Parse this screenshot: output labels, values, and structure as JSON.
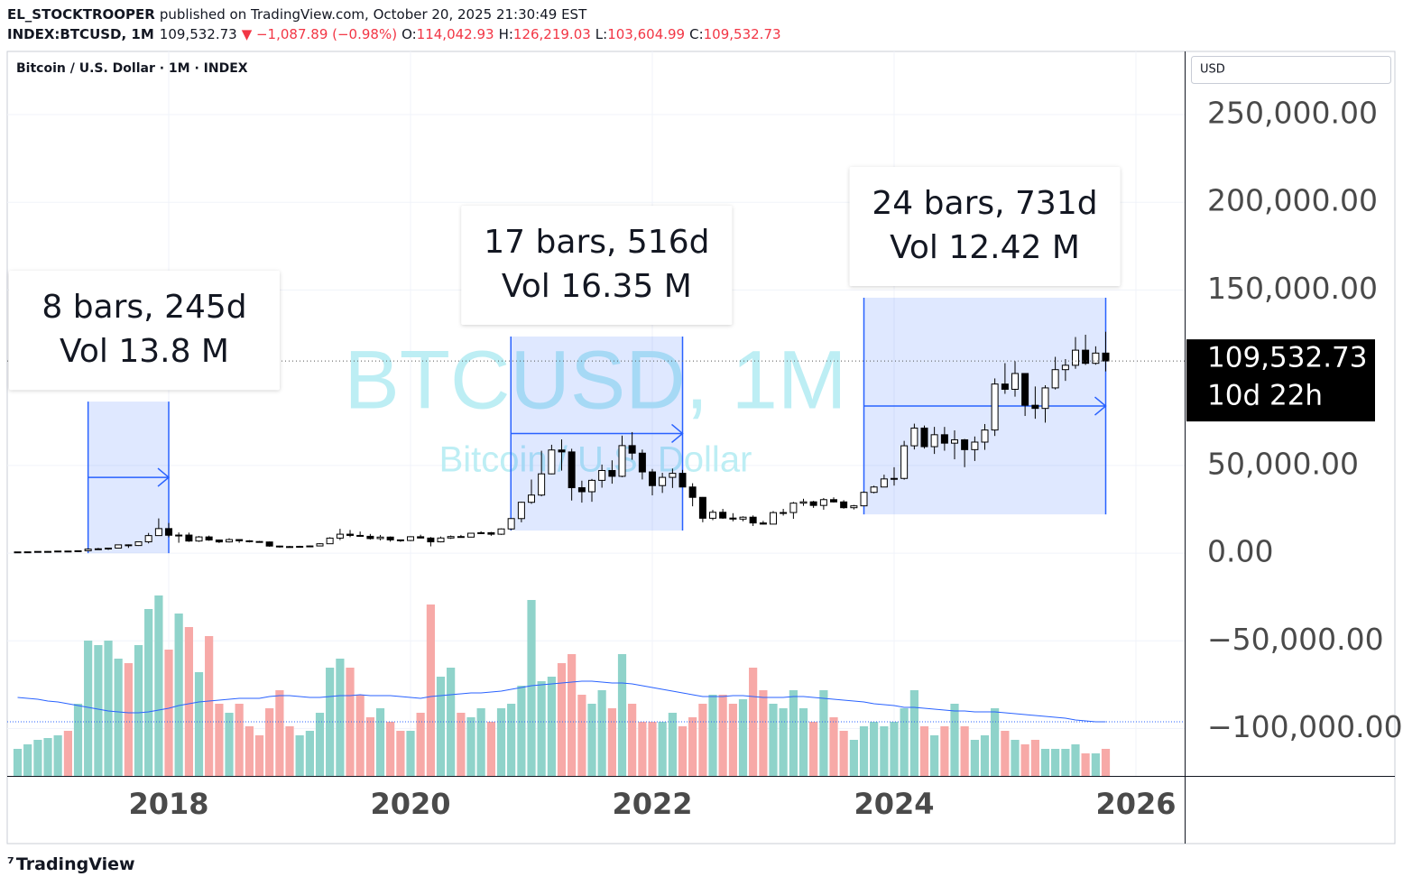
{
  "header": {
    "publisher": "EL_STOCKTROOPER",
    "published": "published on TradingView.com, October 20, 2025 21:30:49 EST",
    "symbol": "INDEX:BTCUSD, 1M",
    "price": "109,532.73",
    "change": "▼ −1,087.89 (−0.98%)",
    "ohlc": [
      {
        "label": "O:",
        "value": "114,042.93"
      },
      {
        "label": "H:",
        "value": "126,219.03"
      },
      {
        "label": "L:",
        "value": "103,604.99"
      },
      {
        "label": "C:",
        "value": "109,532.73"
      }
    ]
  },
  "footer": {
    "brand": "TradingView"
  },
  "chart_data": {
    "type": "candlestick",
    "title": "Bitcoin / U.S. Dollar · 1M · INDEX",
    "currency": "USD",
    "watermark": "BTCUSD, 1M",
    "watermark_subtitle": "Bitcoin / U.S. Dollar",
    "last_price_label": "109,532.73",
    "countdown": "10d 22h",
    "up_color": "#ffffff",
    "down_color": "#000000",
    "volume_up_color": "#8fd3ca",
    "volume_down_color": "#f7a9a7",
    "ma_color": "#2962ff",
    "measure_color": "#2962ff",
    "grid": true,
    "xlim": [
      2016.664,
      2026.403
    ],
    "xticks": [
      2018,
      2020,
      2022,
      2024,
      2026
    ],
    "ylim": [
      -127000,
      286000
    ],
    "yticks": [
      {
        "value": -100000,
        "label": "−100,000.00"
      },
      {
        "value": -50000,
        "label": "−50,000.00"
      },
      {
        "value": 0,
        "label": "0.00"
      },
      {
        "value": 50000,
        "label": "50,000.00"
      },
      {
        "value": 150000,
        "label": "150,000.00"
      },
      {
        "value": 200000,
        "label": "200,000.00"
      },
      {
        "value": 250000,
        "label": "250,000.00"
      }
    ],
    "x": [
      2016.75,
      2016.833,
      2016.917,
      2017,
      2017.083,
      2017.167,
      2017.25,
      2017.333,
      2017.417,
      2017.5,
      2017.583,
      2017.667,
      2017.75,
      2017.833,
      2017.917,
      2018,
      2018.083,
      2018.167,
      2018.25,
      2018.333,
      2018.417,
      2018.5,
      2018.583,
      2018.667,
      2018.75,
      2018.833,
      2018.917,
      2019,
      2019.083,
      2019.167,
      2019.25,
      2019.333,
      2019.417,
      2019.5,
      2019.583,
      2019.667,
      2019.75,
      2019.833,
      2019.917,
      2020,
      2020.083,
      2020.167,
      2020.25,
      2020.333,
      2020.417,
      2020.5,
      2020.583,
      2020.667,
      2020.75,
      2020.833,
      2020.917,
      2021,
      2021.083,
      2021.167,
      2021.25,
      2021.333,
      2021.417,
      2021.5,
      2021.583,
      2021.667,
      2021.75,
      2021.833,
      2021.917,
      2022,
      2022.083,
      2022.167,
      2022.25,
      2022.333,
      2022.417,
      2022.5,
      2022.583,
      2022.667,
      2022.75,
      2022.833,
      2022.917,
      2023,
      2023.083,
      2023.167,
      2023.25,
      2023.333,
      2023.417,
      2023.5,
      2023.583,
      2023.667,
      2023.75,
      2023.833,
      2023.917,
      2024,
      2024.083,
      2024.167,
      2024.25,
      2024.333,
      2024.417,
      2024.5,
      2024.583,
      2024.667,
      2024.75,
      2024.833,
      2024.917,
      2025,
      2025.083,
      2025.167,
      2025.25,
      2025.333,
      2025.417,
      2025.5,
      2025.583,
      2025.667,
      2025.75
    ],
    "open": [
      610,
      700,
      740,
      960,
      970,
      1190,
      1080,
      1350,
      2300,
      2480,
      2870,
      4730,
      4340,
      6450,
      10000,
      14000,
      10200,
      10300,
      6900,
      9240,
      7500,
      6400,
      7730,
      7030,
      6630,
      6370,
      4040,
      3740,
      3460,
      3850,
      4100,
      5350,
      8570,
      10800,
      10100,
      9600,
      8300,
      9150,
      7570,
      7200,
      9350,
      8600,
      6440,
      8630,
      9450,
      9140,
      11350,
      11650,
      10780,
      13800,
      19700,
      28990,
      33100,
      45200,
      58800,
      57700,
      37300,
      35000,
      41500,
      47100,
      43800,
      61300,
      57000,
      46300,
      38500,
      43200,
      45500,
      37700,
      31800,
      19900,
      23300,
      20000,
      19400,
      20500,
      17200,
      16550,
      23100,
      23150,
      28500,
      29250,
      27200,
      30500,
      29200,
      25900,
      26970,
      34650,
      37700,
      42300,
      42600,
      61200,
      71300,
      60700,
      67500,
      62700,
      64600,
      59000,
      63300,
      70200,
      96400,
      93400,
      102400,
      84300,
      82500,
      94200,
      104600,
      107100,
      115700,
      108200,
      114042.93
    ],
    "high": [
      720,
      760,
      980,
      1160,
      1200,
      1350,
      1360,
      2760,
      2980,
      2920,
      4770,
      4980,
      6470,
      11500,
      19800,
      17200,
      11800,
      11700,
      9760,
      9990,
      7780,
      8490,
      7750,
      7410,
      6960,
      6620,
      4230,
      4110,
      4200,
      4290,
      5640,
      9080,
      13880,
      13200,
      12330,
      10940,
      10370,
      9510,
      7760,
      9620,
      10500,
      9190,
      9460,
      10070,
      10380,
      11440,
      12470,
      12070,
      14100,
      19740,
      29300,
      41950,
      58370,
      61790,
      64850,
      59500,
      41300,
      42300,
      50500,
      52920,
      66990,
      69000,
      59040,
      47990,
      45800,
      48190,
      47440,
      39850,
      31980,
      24670,
      25210,
      22790,
      20990,
      21480,
      18390,
      23950,
      25250,
      29190,
      31000,
      29820,
      31430,
      31800,
      30190,
      27480,
      35200,
      38420,
      44730,
      48970,
      64000,
      73800,
      72750,
      71980,
      71950,
      70000,
      65100,
      66500,
      73600,
      99600,
      108300,
      109400,
      102500,
      95000,
      95700,
      111900,
      110600,
      123200,
      124500,
      117900,
      126219.03
    ],
    "low": [
      600,
      690,
      730,
      750,
      920,
      890,
      1060,
      1330,
      2050,
      1840,
      2600,
      2970,
      4110,
      5550,
      10700,
      9040,
      5920,
      6420,
      6430,
      7030,
      5780,
      6070,
      5880,
      6100,
      6200,
      3650,
      3150,
      3350,
      3390,
      3730,
      4080,
      5330,
      7430,
      9110,
      9320,
      7730,
      7300,
      6530,
      6430,
      6850,
      8470,
      3850,
      6150,
      8110,
      8930,
      8980,
      10990,
      9880,
      10420,
      13220,
      17580,
      28100,
      32400,
      44960,
      47060,
      30000,
      28800,
      29280,
      37330,
      39600,
      43280,
      53250,
      42000,
      32930,
      34320,
      37160,
      37580,
      26700,
      17600,
      18780,
      19540,
      18150,
      18190,
      15480,
      16260,
      16500,
      21400,
      19550,
      26940,
      25810,
      24750,
      28860,
      25360,
      24900,
      26950,
      34100,
      37600,
      38500,
      41880,
      59100,
      59600,
      56550,
      58400,
      53500,
      49000,
      52550,
      58900,
      66800,
      90800,
      89200,
      78200,
      76600,
      74400,
      93300,
      98200,
      105100,
      107300,
      107400,
      103604.99
    ],
    "close": [
      700,
      740,
      960,
      970,
      1190,
      1080,
      1350,
      2300,
      2480,
      2870,
      4730,
      4340,
      6450,
      10000,
      14000,
      10200,
      10300,
      6900,
      9240,
      7500,
      6400,
      7730,
      7030,
      6630,
      6370,
      4040,
      3740,
      3460,
      3850,
      4100,
      5350,
      8570,
      10800,
      10100,
      9600,
      8300,
      9150,
      7570,
      7200,
      9350,
      8600,
      6440,
      8630,
      9450,
      9140,
      11350,
      11650,
      10780,
      13800,
      19700,
      28990,
      33100,
      45200,
      58800,
      57700,
      37300,
      35000,
      41500,
      47100,
      43800,
      61300,
      57000,
      46300,
      38500,
      43200,
      45500,
      37700,
      31800,
      19900,
      23300,
      20000,
      19400,
      20500,
      17200,
      16550,
      23100,
      23150,
      28500,
      29250,
      27200,
      30500,
      29200,
      25900,
      26970,
      34650,
      37700,
      42300,
      42600,
      61200,
      71300,
      60700,
      67500,
      62700,
      64600,
      59000,
      63300,
      70200,
      96400,
      93400,
      102400,
      84300,
      82500,
      94200,
      104600,
      107100,
      115700,
      108200,
      114042.93,
      109532.73
    ],
    "volume": [
      0.3,
      0.35,
      0.4,
      0.42,
      0.45,
      0.5,
      0.8,
      1.5,
      1.45,
      1.5,
      1.3,
      1.25,
      1.45,
      1.85,
      2.0,
      1.4,
      1.8,
      1.65,
      1.15,
      1.55,
      0.8,
      0.7,
      0.8,
      0.55,
      0.45,
      0.75,
      0.95,
      0.55,
      0.45,
      0.5,
      0.7,
      1.2,
      1.3,
      1.2,
      0.9,
      0.65,
      0.75,
      0.6,
      0.5,
      0.5,
      0.7,
      1.9,
      1.1,
      1.2,
      0.7,
      0.65,
      0.75,
      0.6,
      0.75,
      0.8,
      1.0,
      1.95,
      1.05,
      1.1,
      1.25,
      1.35,
      0.9,
      0.8,
      0.95,
      0.75,
      1.35,
      0.8,
      0.6,
      0.6,
      0.6,
      0.7,
      0.55,
      0.65,
      0.8,
      0.9,
      0.9,
      0.8,
      0.85,
      1.2,
      0.95,
      0.8,
      0.75,
      0.95,
      0.75,
      0.6,
      0.95,
      0.65,
      0.5,
      0.4,
      0.55,
      0.6,
      0.55,
      0.6,
      0.75,
      0.95,
      0.55,
      0.45,
      0.55,
      0.8,
      0.55,
      0.4,
      0.45,
      0.75,
      0.5,
      0.4,
      0.35,
      0.4,
      0.3,
      0.3,
      0.3,
      0.35,
      0.25,
      0.25,
      0.3
    ],
    "volume_ma": [
      0.87,
      0.86,
      0.85,
      0.83,
      0.82,
      0.8,
      0.78,
      0.76,
      0.74,
      0.72,
      0.71,
      0.7,
      0.7,
      0.71,
      0.73,
      0.75,
      0.78,
      0.8,
      0.82,
      0.83,
      0.84,
      0.85,
      0.86,
      0.86,
      0.86,
      0.88,
      0.89,
      0.89,
      0.88,
      0.87,
      0.87,
      0.88,
      0.89,
      0.89,
      0.9,
      0.89,
      0.89,
      0.89,
      0.88,
      0.87,
      0.86,
      0.88,
      0.89,
      0.9,
      0.91,
      0.92,
      0.92,
      0.93,
      0.94,
      0.96,
      0.98,
      1.0,
      1.01,
      1.02,
      1.03,
      1.04,
      1.05,
      1.05,
      1.04,
      1.03,
      1.03,
      1.02,
      1.0,
      0.98,
      0.96,
      0.94,
      0.92,
      0.9,
      0.88,
      0.88,
      0.88,
      0.89,
      0.89,
      0.88,
      0.87,
      0.87,
      0.87,
      0.88,
      0.88,
      0.87,
      0.86,
      0.85,
      0.84,
      0.83,
      0.82,
      0.8,
      0.79,
      0.78,
      0.76,
      0.76,
      0.75,
      0.74,
      0.73,
      0.72,
      0.72,
      0.71,
      0.71,
      0.71,
      0.7,
      0.69,
      0.68,
      0.67,
      0.66,
      0.65,
      0.64,
      0.62,
      0.61,
      0.6,
      0.6
    ],
    "measures": [
      {
        "x": [
          2017.333,
          2018.0
        ],
        "y": [
          0,
          86400
        ],
        "label_lines": [
          "8 bars, 245d",
          "Vol 13.8 M"
        ]
      },
      {
        "x": [
          2020.83,
          2022.25
        ],
        "y": [
          12900,
          123500
        ],
        "label_lines": [
          "17 bars, 516d",
          "Vol 16.35 M"
        ]
      },
      {
        "x": [
          2023.75,
          2025.75
        ],
        "y": [
          22100,
          145600
        ],
        "label_lines": [
          "24 bars, 731d",
          "Vol 12.42 M"
        ]
      }
    ]
  }
}
